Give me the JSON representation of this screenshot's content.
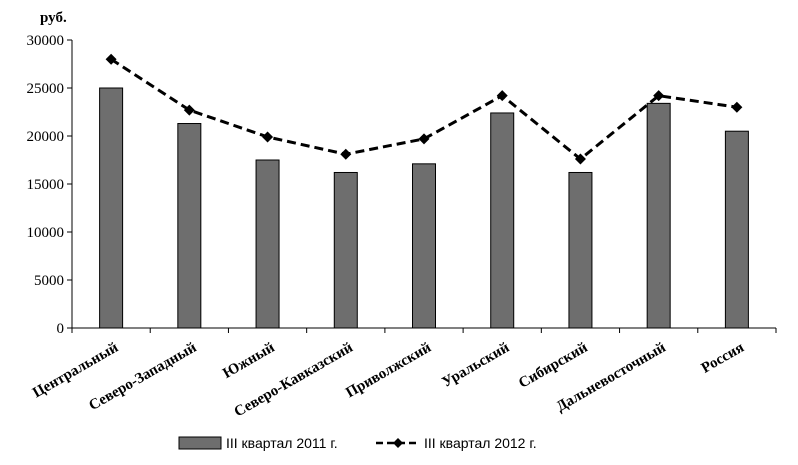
{
  "chart_data": {
    "type": "bar",
    "unit_label": "руб.",
    "categories": [
      "Центральный",
      "Северо-Западный",
      "Южный",
      "Северо-Кавказский",
      "Приволжский",
      "Уральский",
      "Сибирский",
      "Дальневосточный",
      "Россия"
    ],
    "series": [
      {
        "name": "III квартал 2011 г.",
        "type": "bar",
        "color": "#6e6e6e",
        "values": [
          25000,
          21300,
          17500,
          16200,
          17100,
          22400,
          16200,
          23400,
          20500
        ]
      },
      {
        "name": "III квартал 2012 г.",
        "type": "line",
        "style": "dashed",
        "marker": "diamond",
        "color": "#000000",
        "values": [
          28000,
          22700,
          19900,
          18100,
          19700,
          24200,
          17600,
          24200,
          23000
        ]
      }
    ],
    "yticks": [
      0,
      5000,
      10000,
      15000,
      20000,
      25000,
      30000
    ],
    "ylim": [
      0,
      30000
    ],
    "grid": false,
    "legend_position": "bottom"
  }
}
